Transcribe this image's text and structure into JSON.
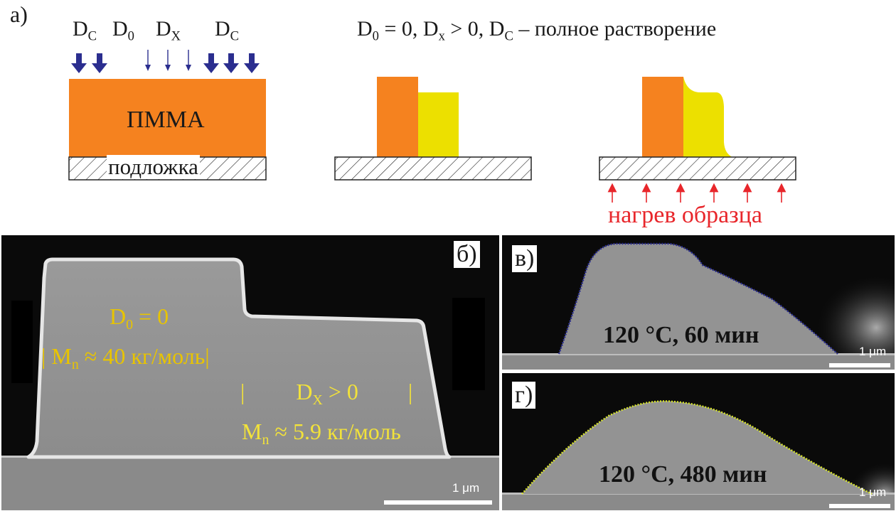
{
  "panel_a": {
    "label": "a)",
    "header_text": {
      "d0": "D",
      "d0_sub": "0",
      "d0_rest": " = 0,  ",
      "dx": "D",
      "dx_sub": "x",
      "dx_rest": " > 0,  ",
      "dc": "D",
      "dc_sub": "C",
      "dc_rest": " – полное растворение"
    },
    "dose_labels": [
      {
        "main": "D",
        "sub": "C"
      },
      {
        "main": "D",
        "sub": "0"
      },
      {
        "main": "D",
        "sub": "X"
      },
      {
        "main": "D",
        "sub": "C"
      }
    ],
    "resist_label": "ПММА",
    "substrate_label": "подложка",
    "heating_label": "нагрев образца",
    "colors": {
      "resist": "#f5821f",
      "exposed": "#ece000",
      "arrow": "#2b2e8f",
      "heat": "#e8262b"
    }
  },
  "panel_b": {
    "label": "б)",
    "d0_text": {
      "main": "D",
      "sub": "0",
      "rest": " = 0"
    },
    "mn_high": {
      "left_bar": "|",
      "main": "M",
      "sub": "n",
      "rest": " ≈ 40 кг/моль",
      "right_bar": "|"
    },
    "dx_text": {
      "left_bar": "|",
      "main": "D",
      "sub": "X",
      "rest": " > 0",
      "right_bar": "|"
    },
    "mn_low": {
      "main": "M",
      "sub": "n",
      "rest": " ≈ 5.9 кг/моль"
    },
    "scale": "1 μm"
  },
  "panel_v": {
    "label": "в)",
    "caption": "120 °C, 60 мин",
    "scale": "1 μm"
  },
  "panel_g": {
    "label": "г)",
    "caption": "120 °C, 480 мин",
    "scale": "1 μm"
  }
}
